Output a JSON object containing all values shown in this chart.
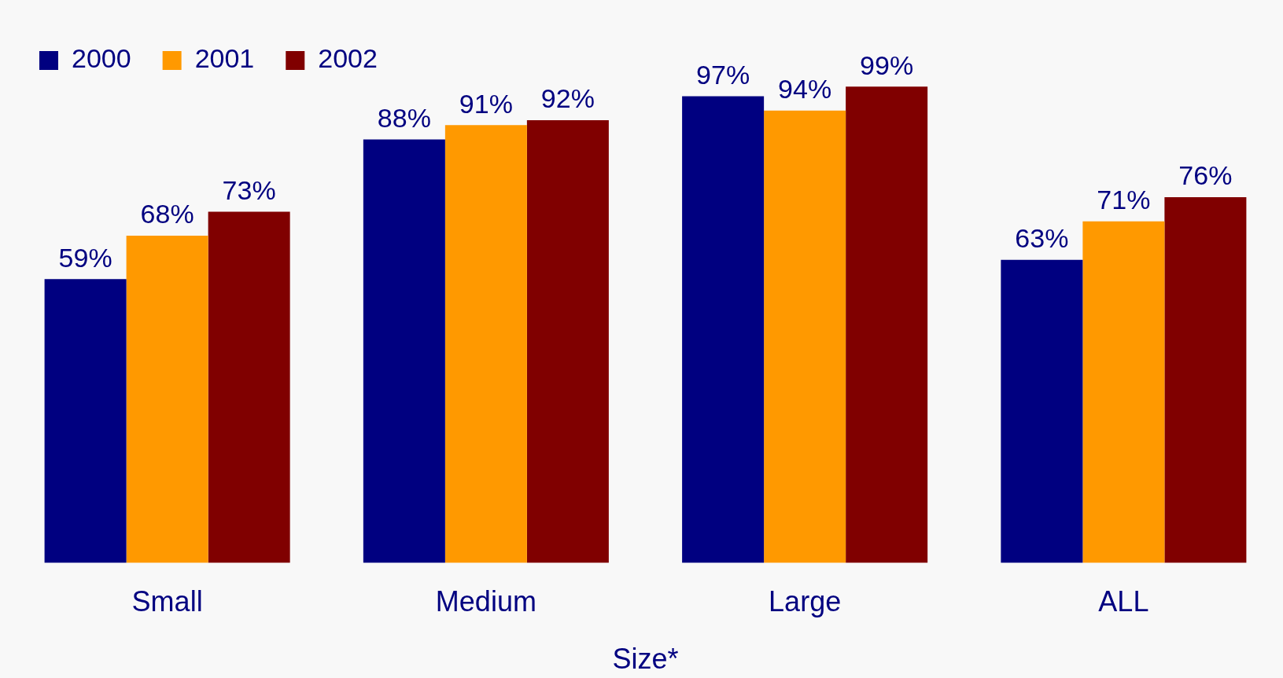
{
  "chart_data": {
    "type": "bar",
    "xlabel": "Size*",
    "categories": [
      "Small",
      "Medium",
      "Large",
      "ALL"
    ],
    "legend": "top left",
    "grid": false,
    "tick_labels": "x",
    "series": [
      {
        "name": "2000",
        "color": "#000080",
        "values": [
          59,
          88,
          97,
          63
        ],
        "value_labels": [
          "59%",
          "88%",
          "97%",
          "63%"
        ]
      },
      {
        "name": "2001",
        "color": "#ff9900",
        "values": [
          68,
          91,
          94,
          71
        ],
        "value_labels": [
          "68%",
          "91%",
          "94%",
          "71%"
        ]
      },
      {
        "name": "2002",
        "color": "#800000",
        "values": [
          73,
          92,
          99,
          76
        ],
        "value_labels": [
          "73%",
          "92%",
          "99%",
          "76%"
        ]
      }
    ]
  }
}
